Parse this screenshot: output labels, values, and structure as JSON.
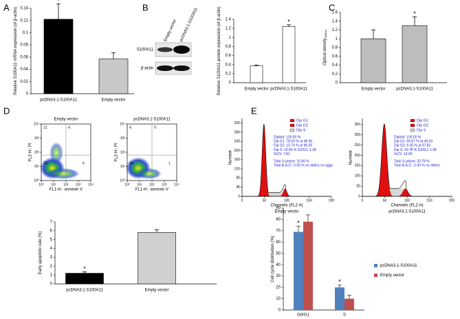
{
  "panel_labels": [
    "A",
    "B",
    "C",
    "D",
    "E"
  ],
  "blot": {
    "lanes": [
      "Empty vector",
      "pcDNA3.1-S100A11"
    ],
    "rows": [
      "S100A11",
      "β-actin"
    ]
  },
  "chart_data": [
    {
      "type": "bar",
      "y_label": "Relative S100A11 mRNA expression (of β-actin)",
      "categories": [
        "pcDNA3.1-S100A11",
        "Empty vector"
      ],
      "values": [
        0.122,
        0.057
      ],
      "errors": [
        0.025,
        0.01
      ],
      "colors": [
        "#000000",
        "#c8c8c8"
      ],
      "significance": [
        "*",
        null
      ],
      "ylim": [
        0,
        0.14
      ],
      "yticks": [
        0,
        0.02,
        0.04,
        0.06,
        0.08,
        0.1,
        0.12,
        0.14
      ]
    },
    {
      "type": "bar",
      "y_label": "Relative S100A11 protein expression (of β-actin)",
      "categories": [
        "Empty vector",
        "pcDNA3.1-S100A11"
      ],
      "values": [
        0.37,
        1.24
      ],
      "errors": [
        0.02,
        0.04
      ],
      "colors": [
        "#ffffff",
        "#ffffff"
      ],
      "significance": [
        null,
        "*"
      ],
      "ylim": [
        0,
        1.4
      ],
      "yticks": [
        0,
        0.2,
        0.4,
        0.6,
        0.8,
        1,
        1.2,
        1.4
      ]
    },
    {
      "type": "bar",
      "y_label": "Optical density",
      "y_label_sub": "490nm",
      "categories": [
        "Empty vector",
        "pcDNA3.1-S100A11"
      ],
      "values": [
        1.0,
        1.3
      ],
      "errors": [
        0.2,
        0.2
      ],
      "colors": [
        "#bdbdbd",
        "#bdbdbd"
      ],
      "significance": [
        null,
        "*"
      ],
      "ylim": [
        0,
        1.6
      ],
      "yticks": [
        0,
        0.2,
        0.4,
        0.6,
        0.8,
        1,
        1.2,
        1.4,
        1.6
      ]
    },
    {
      "type": "flow_cytometry",
      "x_label": "FL1-H:: annexin V",
      "y_label": "FL2-H:: PI",
      "log": true,
      "xlim": [
        1,
        10000
      ],
      "ylim": [
        1,
        10000
      ],
      "xticks": [
        {
          "value": 1,
          "label": "10⁰"
        },
        {
          "value": 10,
          "label": "10¹"
        },
        {
          "value": 100,
          "label": "10²"
        },
        {
          "value": 1000,
          "label": "10³"
        },
        {
          "value": 10000,
          "label": "10⁴"
        }
      ],
      "yticks": [
        {
          "value": 1,
          "label": "10⁰"
        },
        {
          "value": 10,
          "label": "10¹"
        },
        {
          "value": 100,
          "label": "10²"
        },
        {
          "value": 1000,
          "label": "10³"
        },
        {
          "value": 10000,
          "label": "10⁴"
        }
      ],
      "plots": [
        {
          "title": "Empty vector",
          "quadrants": [
            "12.",
            "4.",
            "78.",
            "6."
          ]
        },
        {
          "title": "pcDNA3.1-S100A11",
          "quadrants": [
            "4.",
            "0.",
            "95.",
            "1."
          ]
        }
      ]
    },
    {
      "type": "bar",
      "y_label": "Early apoptotic rate (%)",
      "categories": [
        "pcDNA3.1-S100A11",
        "Empty vector"
      ],
      "values": [
        1.2,
        5.8
      ],
      "errors": [
        0.15,
        0.3
      ],
      "colors": [
        "#000000",
        "#d0d0d0"
      ],
      "significance": [
        "*",
        null
      ],
      "ylim": [
        0,
        7
      ],
      "yticks": [
        0,
        1,
        2,
        3,
        4,
        5,
        6,
        7
      ]
    },
    {
      "type": "cell_cycle",
      "x_label": "Channels (FL2-A)",
      "y_label": "Number",
      "legend": [
        "Dip G1",
        "Dip G2",
        "Dip S"
      ],
      "xlim": [
        0,
        200
      ],
      "xticks": [
        0,
        50,
        100,
        150,
        200
      ],
      "plots": [
        {
          "caption": "Empty vector",
          "ylim": [
            0,
            340
          ],
          "yticks": [
            0,
            40,
            80,
            120,
            160,
            200,
            240,
            280,
            320
          ],
          "stats": [
            "Diploid: 100.00 %",
            "Dip G1: 78.59 % at 48.90",
            "Dip G2: 10.76 % at 96.05",
            "Dip S: 10.66 % G2/G1: 1.96",
            "%CV: 7.81",
            "Total S-phase: 10.66 %",
            "Total B.A.D.: 0.00 % no debris no aggs"
          ]
        },
        {
          "caption": "pcDNA3.1-S100A11",
          "ylim": [
            0,
            380
          ],
          "yticks": [
            0,
            50,
            100,
            150,
            200,
            250,
            300,
            350
          ],
          "stats": [
            "Diploid: 100.00 %",
            "Dip G1: 69.87 % at 49.63",
            "Dip G2: 9.35 % at 97.82",
            "Dip S: 20.78 % G2/G1: 1.96",
            "%CV: 13.05",
            "Total S-phase: 20.78 %",
            "Total B.A.D.: 0.00 % no debris"
          ]
        }
      ]
    },
    {
      "type": "grouped_bar",
      "y_label": "Cell cycle distribution (%)",
      "categories": [
        "G0/G1",
        "S"
      ],
      "series": [
        {
          "name": "pcDNA3.1-S100A11",
          "color": "#4f81bd",
          "values": [
            69,
            20
          ],
          "errors": [
            5,
            2
          ]
        },
        {
          "name": "Empty vector",
          "color": "#c0504d",
          "values": [
            78,
            10
          ],
          "errors": [
            6,
            3
          ]
        }
      ],
      "significance": [
        "*",
        "*"
      ],
      "ylim": [
        0,
        90
      ],
      "yticks": [
        0,
        10,
        20,
        30,
        40,
        50,
        60,
        70,
        80,
        90
      ]
    }
  ]
}
